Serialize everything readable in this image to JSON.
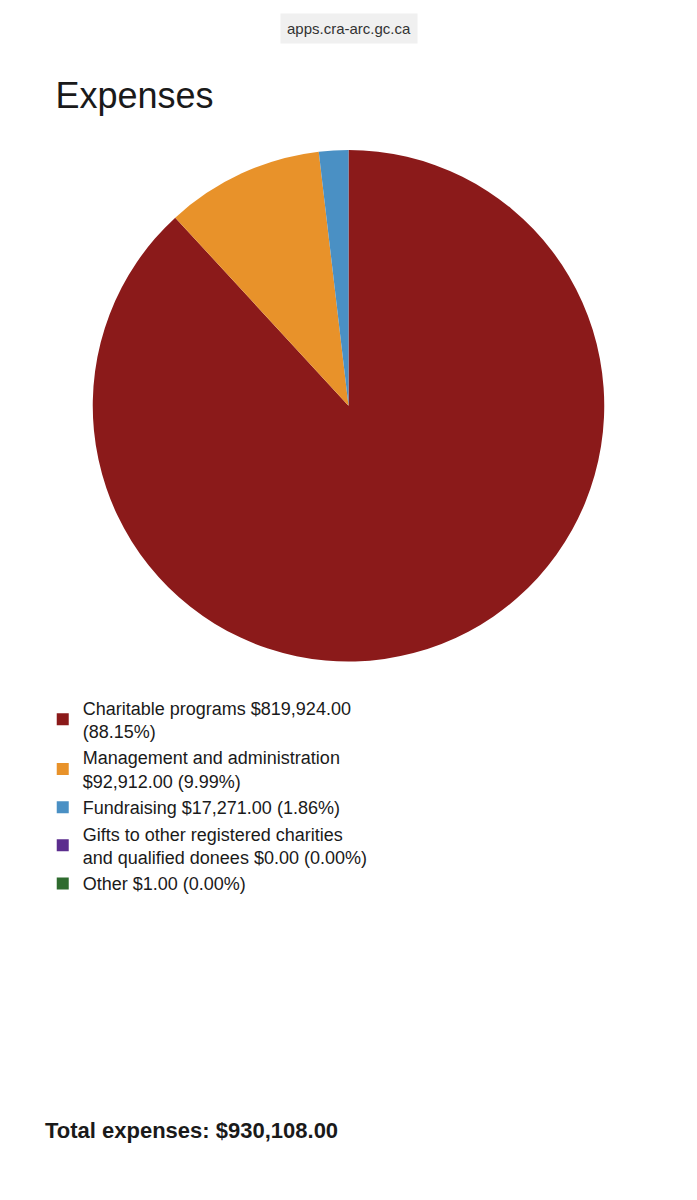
{
  "chart_data": {
    "type": "pie",
    "title": "Expenses",
    "subtitle": "apps.cra-arc.gc.ca",
    "categories": [
      "Charitable programs $819,924.00\n(88.15%)",
      "Management and administration\n$92,912.00 (9.99%)",
      "Fundraising $17,271.00 (1.86%)",
      "Gifts to other registered charities\nand qualified donees $0.00 (0.00%)",
      "Other $1.00 (0.00%)"
    ],
    "values": [
      819924.0,
      92912.0,
      17271.0,
      0.0,
      1.0
    ],
    "colors": [
      "#8B1A1A",
      "#E8922A",
      "#4A90C4",
      "#5B2D8E",
      "#2E6B2E"
    ],
    "annotations": [
      "Total expenses: $930,108.00"
    ],
    "legend": "bottom"
  }
}
